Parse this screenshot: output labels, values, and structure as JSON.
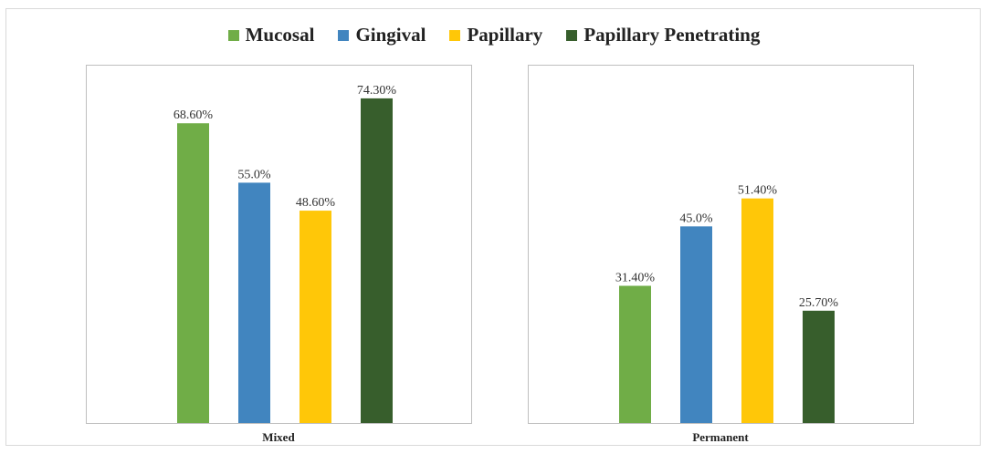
{
  "chart_data": {
    "type": "bar",
    "legend": [
      {
        "name": "Mucosal",
        "color": "#70ad47"
      },
      {
        "name": "Gingival",
        "color": "#4185bf"
      },
      {
        "name": "Papillary",
        "color": "#ffc708"
      },
      {
        "name": "Papillary Penetrating",
        "color": "#375e2c"
      }
    ],
    "legend_position": "top-center",
    "ylim": [
      0,
      82
    ],
    "grid": false,
    "panels": [
      {
        "category": "Mixed",
        "values": [
          68.6,
          55.0,
          48.6,
          74.3
        ],
        "labels": [
          "68.60%",
          "55.0%",
          "48.60%",
          "74.30%"
        ]
      },
      {
        "category": "Permanent",
        "values": [
          31.4,
          45.0,
          51.4,
          25.7
        ],
        "labels": [
          "31.40%",
          "45.0%",
          "51.40%",
          "25.70%"
        ]
      }
    ]
  }
}
